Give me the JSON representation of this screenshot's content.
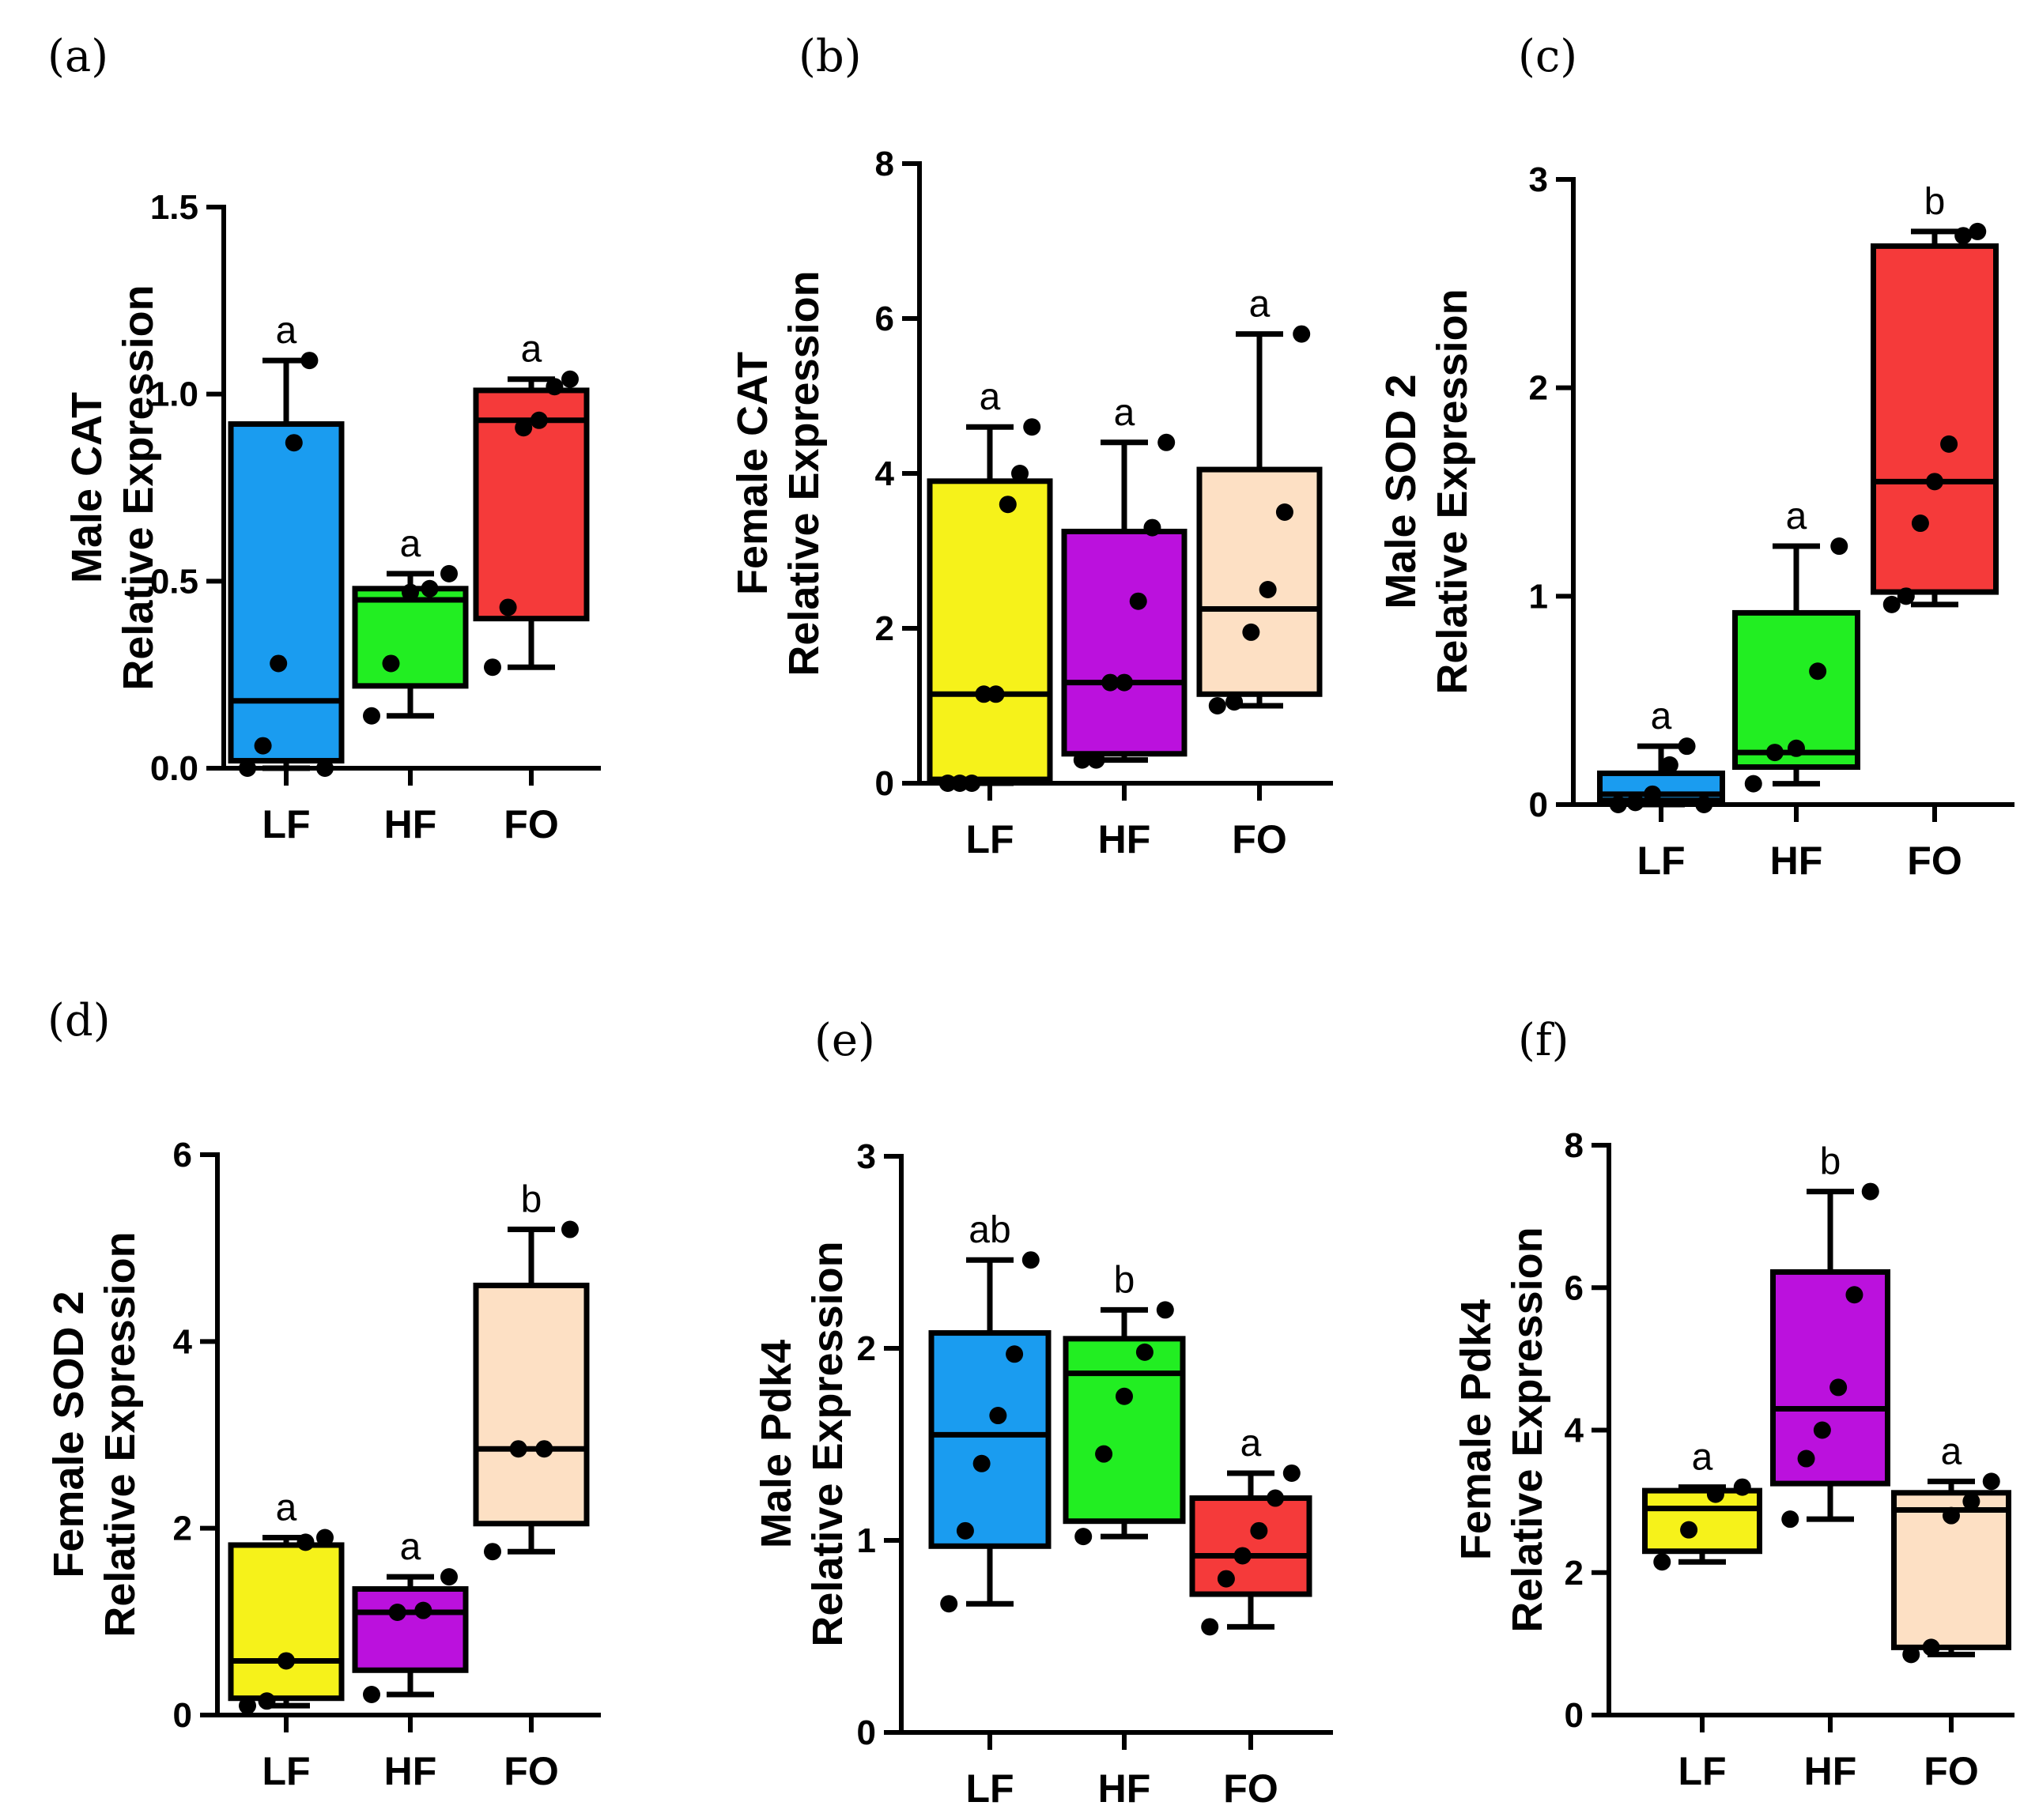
{
  "colors": {
    "LF_blue": "#1a9cf0",
    "LF_yellow": "#f6f21a",
    "HF_green": "#22ee22",
    "HF_purple": "#bb11dd",
    "FO_red": "#f53a3a",
    "FO_peach": "#fde0c4",
    "ink": "#000000"
  },
  "chart_data": [
    {
      "panel": "(a)",
      "type": "box",
      "ylabel": [
        "Male CAT",
        "Relative Expression"
      ],
      "ylim": [
        0,
        1.5
      ],
      "yticks": [
        "0.0",
        "0.5",
        "1.0",
        "1.5"
      ],
      "ytick_values": [
        0,
        0.5,
        1.0,
        1.5
      ],
      "categories": [
        "LF",
        "HF",
        "FO"
      ],
      "boxes": [
        {
          "color_key": "LF_blue",
          "min": 0.0,
          "q1": 0.02,
          "median": 0.18,
          "q3": 0.92,
          "max": 1.09,
          "points": [
            0.0,
            0.06,
            0.28,
            0.87,
            1.09,
            0.0
          ],
          "sig": "a"
        },
        {
          "color_key": "HF_green",
          "min": 0.14,
          "q1": 0.22,
          "median": 0.45,
          "q3": 0.48,
          "max": 0.52,
          "points": [
            0.14,
            0.28,
            0.47,
            0.48,
            0.52
          ],
          "sig": "a"
        },
        {
          "color_key": "FO_red",
          "min": 0.27,
          "q1": 0.4,
          "median": 0.93,
          "q3": 1.01,
          "max": 1.04,
          "points": [
            0.27,
            0.43,
            0.91,
            0.93,
            1.02,
            1.04
          ],
          "sig": "a"
        }
      ]
    },
    {
      "panel": "(b)",
      "type": "box",
      "ylabel": [
        "Female CAT",
        "Relative Expression"
      ],
      "ylim": [
        0,
        8
      ],
      "yticks": [
        "0",
        "2",
        "4",
        "6",
        "8"
      ],
      "ytick_values": [
        0,
        2,
        4,
        6,
        8
      ],
      "categories": [
        "LF",
        "HF",
        "FO"
      ],
      "boxes": [
        {
          "color_key": "LF_yellow",
          "min": 0.0,
          "q1": 0.05,
          "median": 1.15,
          "q3": 3.9,
          "max": 4.6,
          "points": [
            0.0,
            0.0,
            0.0,
            1.15,
            1.15,
            3.6,
            4.0,
            4.6
          ],
          "sig": "a"
        },
        {
          "color_key": "HF_purple",
          "min": 0.3,
          "q1": 0.38,
          "median": 1.3,
          "q3": 3.25,
          "max": 4.4,
          "points": [
            0.3,
            0.3,
            1.3,
            1.3,
            2.35,
            3.3,
            4.4
          ],
          "sig": "a"
        },
        {
          "color_key": "FO_peach",
          "min": 1.0,
          "q1": 1.15,
          "median": 2.25,
          "q3": 4.05,
          "max": 5.8,
          "points": [
            1.0,
            1.05,
            1.95,
            2.5,
            3.5,
            5.8
          ],
          "sig": "a"
        }
      ]
    },
    {
      "panel": "(c)",
      "type": "box",
      "ylabel": [
        "Male SOD 2",
        "Relative Expression"
      ],
      "ylim": [
        0,
        3
      ],
      "yticks": [
        "0",
        "1",
        "2",
        "3"
      ],
      "ytick_values": [
        0,
        1,
        2,
        3
      ],
      "categories": [
        "LF",
        "HF",
        "FO"
      ],
      "boxes": [
        {
          "color_key": "LF_blue",
          "min": 0.0,
          "q1": 0.02,
          "median": 0.05,
          "q3": 0.15,
          "max": 0.28,
          "points": [
            0.0,
            0.01,
            0.05,
            0.19,
            0.28,
            0.0
          ],
          "sig": "a"
        },
        {
          "color_key": "HF_green",
          "min": 0.1,
          "q1": 0.18,
          "median": 0.25,
          "q3": 0.92,
          "max": 1.24,
          "points": [
            0.1,
            0.25,
            0.27,
            0.64,
            1.24
          ],
          "sig": "a"
        },
        {
          "color_key": "FO_red",
          "min": 0.96,
          "q1": 1.02,
          "median": 1.55,
          "q3": 2.68,
          "max": 2.75,
          "points": [
            0.96,
            1.0,
            1.35,
            1.55,
            1.73,
            2.73,
            2.75
          ],
          "sig": "b"
        }
      ]
    },
    {
      "panel": "(d)",
      "type": "box",
      "ylabel": [
        "Female SOD 2",
        "Relative Expression"
      ],
      "ylim": [
        0,
        6
      ],
      "yticks": [
        "0",
        "2",
        "4",
        "6"
      ],
      "ytick_values": [
        0,
        2,
        4,
        6
      ],
      "categories": [
        "LF",
        "HF",
        "FO"
      ],
      "boxes": [
        {
          "color_key": "LF_yellow",
          "min": 0.1,
          "q1": 0.18,
          "median": 0.58,
          "q3": 1.82,
          "max": 1.9,
          "points": [
            0.1,
            0.15,
            0.58,
            1.85,
            1.9
          ],
          "sig": "a"
        },
        {
          "color_key": "HF_purple",
          "min": 0.22,
          "q1": 0.48,
          "median": 1.1,
          "q3": 1.35,
          "max": 1.48,
          "points": [
            0.22,
            1.1,
            1.12,
            1.48
          ],
          "sig": "a"
        },
        {
          "color_key": "FO_peach",
          "min": 1.75,
          "q1": 2.05,
          "median": 2.85,
          "q3": 4.6,
          "max": 5.2,
          "points": [
            1.75,
            2.85,
            2.85,
            5.2
          ],
          "sig": "b"
        }
      ]
    },
    {
      "panel": "(e)",
      "type": "box",
      "ylabel": [
        "Male Pdk4",
        "Relative Expression"
      ],
      "ylim": [
        0,
        3
      ],
      "yticks": [
        "0",
        "1",
        "2",
        "3"
      ],
      "ytick_values": [
        0,
        1,
        2,
        3
      ],
      "categories": [
        "LF",
        "HF",
        "FO"
      ],
      "boxes": [
        {
          "color_key": "LF_blue",
          "min": 0.67,
          "q1": 0.97,
          "median": 1.55,
          "q3": 2.08,
          "max": 2.46,
          "points": [
            0.67,
            1.05,
            1.4,
            1.65,
            1.97,
            2.46
          ],
          "sig": "ab"
        },
        {
          "color_key": "HF_green",
          "min": 1.02,
          "q1": 1.1,
          "median": 1.87,
          "q3": 2.05,
          "max": 2.2,
          "points": [
            1.02,
            1.45,
            1.75,
            1.98,
            2.2
          ],
          "sig": "b"
        },
        {
          "color_key": "FO_red",
          "min": 0.55,
          "q1": 0.72,
          "median": 0.92,
          "q3": 1.22,
          "max": 1.35,
          "points": [
            0.55,
            0.8,
            0.92,
            1.05,
            1.22,
            1.35
          ],
          "sig": "a"
        }
      ]
    },
    {
      "panel": "(f)",
      "type": "box",
      "ylabel": [
        "Female Pdk4",
        "Relative Expression"
      ],
      "ylim": [
        0,
        8
      ],
      "yticks": [
        "0",
        "2",
        "4",
        "6",
        "8"
      ],
      "ytick_values": [
        0,
        2,
        4,
        6,
        8
      ],
      "categories": [
        "LF",
        "HF",
        "FO"
      ],
      "boxes": [
        {
          "color_key": "LF_yellow",
          "min": 2.15,
          "q1": 2.3,
          "median": 2.9,
          "q3": 3.15,
          "max": 3.2,
          "points": [
            2.15,
            2.6,
            3.1,
            3.2
          ],
          "sig": "a"
        },
        {
          "color_key": "HF_purple",
          "min": 2.75,
          "q1": 3.25,
          "median": 4.3,
          "q3": 6.22,
          "max": 7.35,
          "points": [
            2.75,
            3.6,
            4.0,
            4.6,
            5.9,
            7.35
          ],
          "sig": "b"
        },
        {
          "color_key": "FO_peach",
          "min": 0.85,
          "q1": 0.95,
          "median": 2.88,
          "q3": 3.12,
          "max": 3.28,
          "points": [
            0.85,
            0.95,
            2.8,
            3.0,
            3.28
          ],
          "sig": "a"
        }
      ]
    }
  ]
}
